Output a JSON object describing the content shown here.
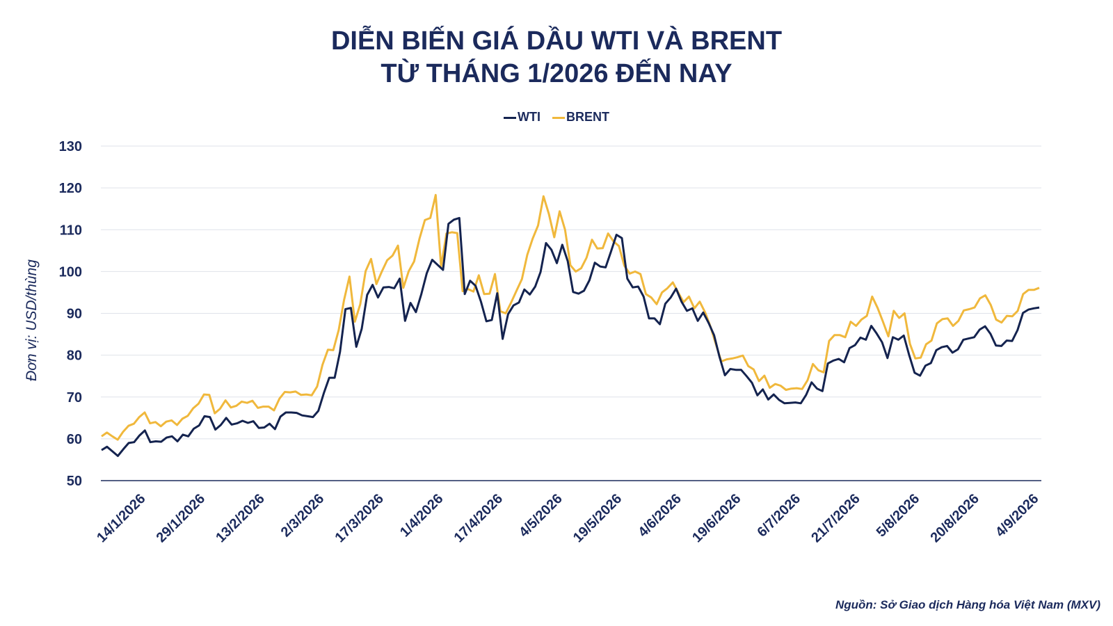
{
  "chart_data": {
    "type": "line",
    "title": [
      "DIỄN BIẾN GIÁ DẦU WTI VÀ BRENT",
      "TỪ THÁNG 1/2026 ĐẾN NAY"
    ],
    "ylabel": "Đơn vị: USD/thùng",
    "xlabel": "",
    "ylim": [
      50,
      130
    ],
    "yticks": [
      50,
      60,
      70,
      80,
      90,
      100,
      110,
      120,
      130
    ],
    "grid": true,
    "legend_position": "top",
    "x_tick_labels": [
      "14/1/2026",
      "29/1/2026",
      "13/2/2026",
      "2/3/2026",
      "17/3/2026",
      "1/4/2026",
      "17/4/2026",
      "4/5/2026",
      "19/5/2026",
      "4/6/2026",
      "19/6/2026",
      "6/7/2026",
      "21/7/2026",
      "5/8/2026",
      "20/8/2026",
      "4/9/2026"
    ],
    "series": [
      {
        "name": "WTI",
        "color": "#14234f",
        "values": [
          57.3,
          58.1,
          57.0,
          55.9,
          57.5,
          59.0,
          59.2,
          60.8,
          62.0,
          59.2,
          59.4,
          59.3,
          60.3,
          60.6,
          59.4,
          61.0,
          60.6,
          62.4,
          63.2,
          65.4,
          65.2,
          62.2,
          63.3,
          65.0,
          63.4,
          63.7,
          64.3,
          63.8,
          64.2,
          62.6,
          62.7,
          63.6,
          62.3,
          65.3,
          66.3,
          66.3,
          66.2,
          65.6,
          65.4,
          65.2,
          66.7,
          70.9,
          74.6,
          74.6,
          80.8,
          91.0,
          91.3,
          82.0,
          86.3,
          94.4,
          96.8,
          93.8,
          96.2,
          96.3,
          96.0,
          98.3,
          88.2,
          92.5,
          90.3,
          94.6,
          99.6,
          102.8,
          101.6,
          100.4,
          111.4,
          112.4,
          112.8,
          94.6,
          97.8,
          96.6,
          92.8,
          88.1,
          88.4,
          94.8,
          83.9,
          89.8,
          91.9,
          92.6,
          95.7,
          94.5,
          96.4,
          99.9,
          106.8,
          105.2,
          102.0,
          106.4,
          102.5,
          95.1,
          94.7,
          95.4,
          97.9,
          102.1,
          101.2,
          101.0,
          104.8,
          108.8,
          108.0,
          98.3,
          96.2,
          96.4,
          94.0,
          88.8,
          88.8,
          87.4,
          92.3,
          93.8,
          95.9,
          92.8,
          90.6,
          91.2,
          88.2,
          90.2,
          87.7,
          84.8,
          79.6,
          75.2,
          76.7,
          76.5,
          76.5,
          75.0,
          73.4,
          70.4,
          71.8,
          69.4,
          70.6,
          69.3,
          68.5,
          68.6,
          68.7,
          68.5,
          70.5,
          73.5,
          72.0,
          71.4,
          78.0,
          78.7,
          79.1,
          78.3,
          81.7,
          82.4,
          84.2,
          83.7,
          87.0,
          85.2,
          83.1,
          79.3,
          84.3,
          83.7,
          84.7,
          80.0,
          75.8,
          75.1,
          77.5,
          78.1,
          81.2,
          81.9,
          82.2,
          80.6,
          81.4,
          83.7,
          84.0,
          84.3,
          86.1,
          86.9,
          85.1,
          82.3,
          82.2,
          83.5,
          83.4,
          86.0,
          90.1,
          90.9,
          91.2,
          91.4
        ]
      },
      {
        "name": "BRENT",
        "color": "#f0b83c",
        "values": [
          60.6,
          61.5,
          60.6,
          59.8,
          61.7,
          63.1,
          63.6,
          65.2,
          66.3,
          63.7,
          64.0,
          63.0,
          64.1,
          64.4,
          63.3,
          64.8,
          65.5,
          67.3,
          68.4,
          70.6,
          70.5,
          66.1,
          67.2,
          69.2,
          67.5,
          67.9,
          68.9,
          68.6,
          69.1,
          67.4,
          67.7,
          67.7,
          66.8,
          69.6,
          71.2,
          71.1,
          71.3,
          70.5,
          70.6,
          70.4,
          72.5,
          77.7,
          81.3,
          81.2,
          86.0,
          93.2,
          98.8,
          88.0,
          92.2,
          100.1,
          103.0,
          97.0,
          100.0,
          102.7,
          103.8,
          106.2,
          96.1,
          100.1,
          102.4,
          107.9,
          112.3,
          112.8,
          118.3,
          101.2,
          109.1,
          109.4,
          109.2,
          95.3,
          95.8,
          95.2,
          99.1,
          94.6,
          94.7,
          99.4,
          90.5,
          90.0,
          92.6,
          95.4,
          98.2,
          104.0,
          107.9,
          111.0,
          118.0,
          113.8,
          108.2,
          114.4,
          110.0,
          101.5,
          100.0,
          100.8,
          103.3,
          107.6,
          105.5,
          105.6,
          109.1,
          107.2,
          106.1,
          101.4,
          99.5,
          100.0,
          99.4,
          94.6,
          93.8,
          92.2,
          95.0,
          96.0,
          97.4,
          95.0,
          92.7,
          94.0,
          91.2,
          92.8,
          90.2,
          86.8,
          82.6,
          78.5,
          79.0,
          79.2,
          79.5,
          79.9,
          77.4,
          76.6,
          73.8,
          75.1,
          72.2,
          73.1,
          72.7,
          71.7,
          72.0,
          72.1,
          71.9,
          74.0,
          77.9,
          76.4,
          75.9,
          83.4,
          84.8,
          84.8,
          84.3,
          88.0,
          87.0,
          88.5,
          89.4,
          94.0,
          91.3,
          88.0,
          84.5,
          90.6,
          88.9,
          90.0,
          82.7,
          79.2,
          79.4,
          82.6,
          83.5,
          87.6,
          88.6,
          88.8,
          87.0,
          88.2,
          90.7,
          91.0,
          91.4,
          93.6,
          94.3,
          92.0,
          88.5,
          87.8,
          89.4,
          89.3,
          90.6,
          94.6,
          95.6,
          95.6,
          96.1
        ]
      }
    ]
  },
  "source_note": "Nguồn: Sở Giao dịch Hàng hóa Việt Nam (MXV)"
}
